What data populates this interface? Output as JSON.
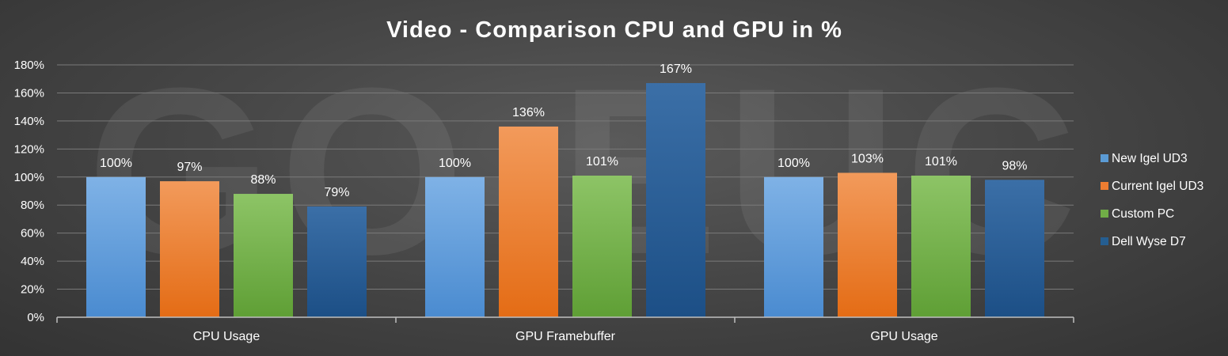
{
  "chart_data": {
    "type": "bar",
    "title": "Video - Comparison CPU and GPU in %",
    "watermark": "GO-EUC",
    "categories": [
      "CPU Usage",
      "GPU Framebuffer",
      "GPU Usage"
    ],
    "series": [
      {
        "name": "New Igel UD3",
        "values": [
          100,
          100,
          100
        ],
        "color": "#5b9bd5"
      },
      {
        "name": "Current Igel UD3",
        "values": [
          97,
          136,
          103
        ],
        "color": "#ed7d31"
      },
      {
        "name": "Custom PC",
        "values": [
          88,
          101,
          101
        ],
        "color": "#70ad47"
      },
      {
        "name": "Dell Wyse D7",
        "values": [
          79,
          167,
          98
        ],
        "color": "#255e91"
      }
    ],
    "data_labels": [
      [
        "100%",
        "100%",
        "100%"
      ],
      [
        "97%",
        "136%",
        "103%"
      ],
      [
        "88%",
        "101%",
        "101%"
      ],
      [
        "79%",
        "167%",
        "98%"
      ]
    ],
    "y_ticks": [
      0,
      20,
      40,
      60,
      80,
      100,
      120,
      140,
      160,
      180
    ],
    "y_tick_labels": [
      "0%",
      "20%",
      "40%",
      "60%",
      "80%",
      "100%",
      "120%",
      "140%",
      "160%",
      "180%"
    ],
    "ylim": [
      0,
      180
    ],
    "grid": true,
    "legend_position": "right",
    "xlabel": "",
    "ylabel": ""
  }
}
